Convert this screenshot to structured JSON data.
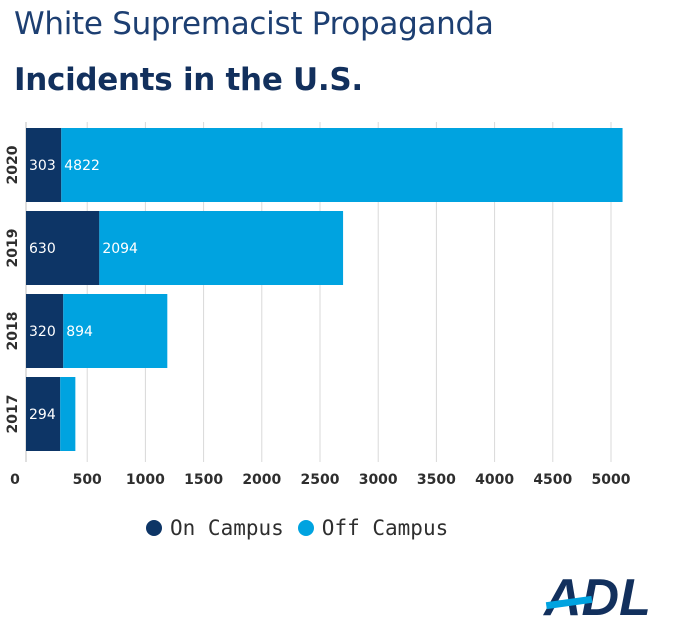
{
  "title_line1": "White Supremacist Propaganda",
  "title_line2": "Incidents in the U.S.",
  "colors": {
    "on_campus": "#0d3566",
    "off_campus": "#00a3e0",
    "grid": "#d9d9d9",
    "title": "#1d3f72"
  },
  "chart_data": {
    "type": "bar",
    "orientation": "horizontal",
    "stacked": true,
    "categories": [
      "2020",
      "2019",
      "2018",
      "2017"
    ],
    "series": [
      {
        "name": "On Campus",
        "values": [
          303,
          630,
          320,
          294
        ],
        "labels": [
          "303",
          "630",
          "320",
          "294"
        ]
      },
      {
        "name": "Off Campus",
        "values": [
          4822,
          2094,
          894,
          130
        ],
        "labels": [
          "4822",
          "2094",
          "894",
          ""
        ]
      }
    ],
    "xticks": [
      "0",
      "500",
      "1000",
      "1500",
      "2000",
      "2500",
      "3000",
      "3500",
      "4000",
      "4500",
      "5000"
    ],
    "xlim": [
      0,
      5000
    ],
    "grid": true,
    "legend_position": "bottom"
  },
  "legend": {
    "on_campus": "On Campus",
    "off_campus": "Off Campus"
  },
  "logo": {
    "text": "ADL"
  }
}
